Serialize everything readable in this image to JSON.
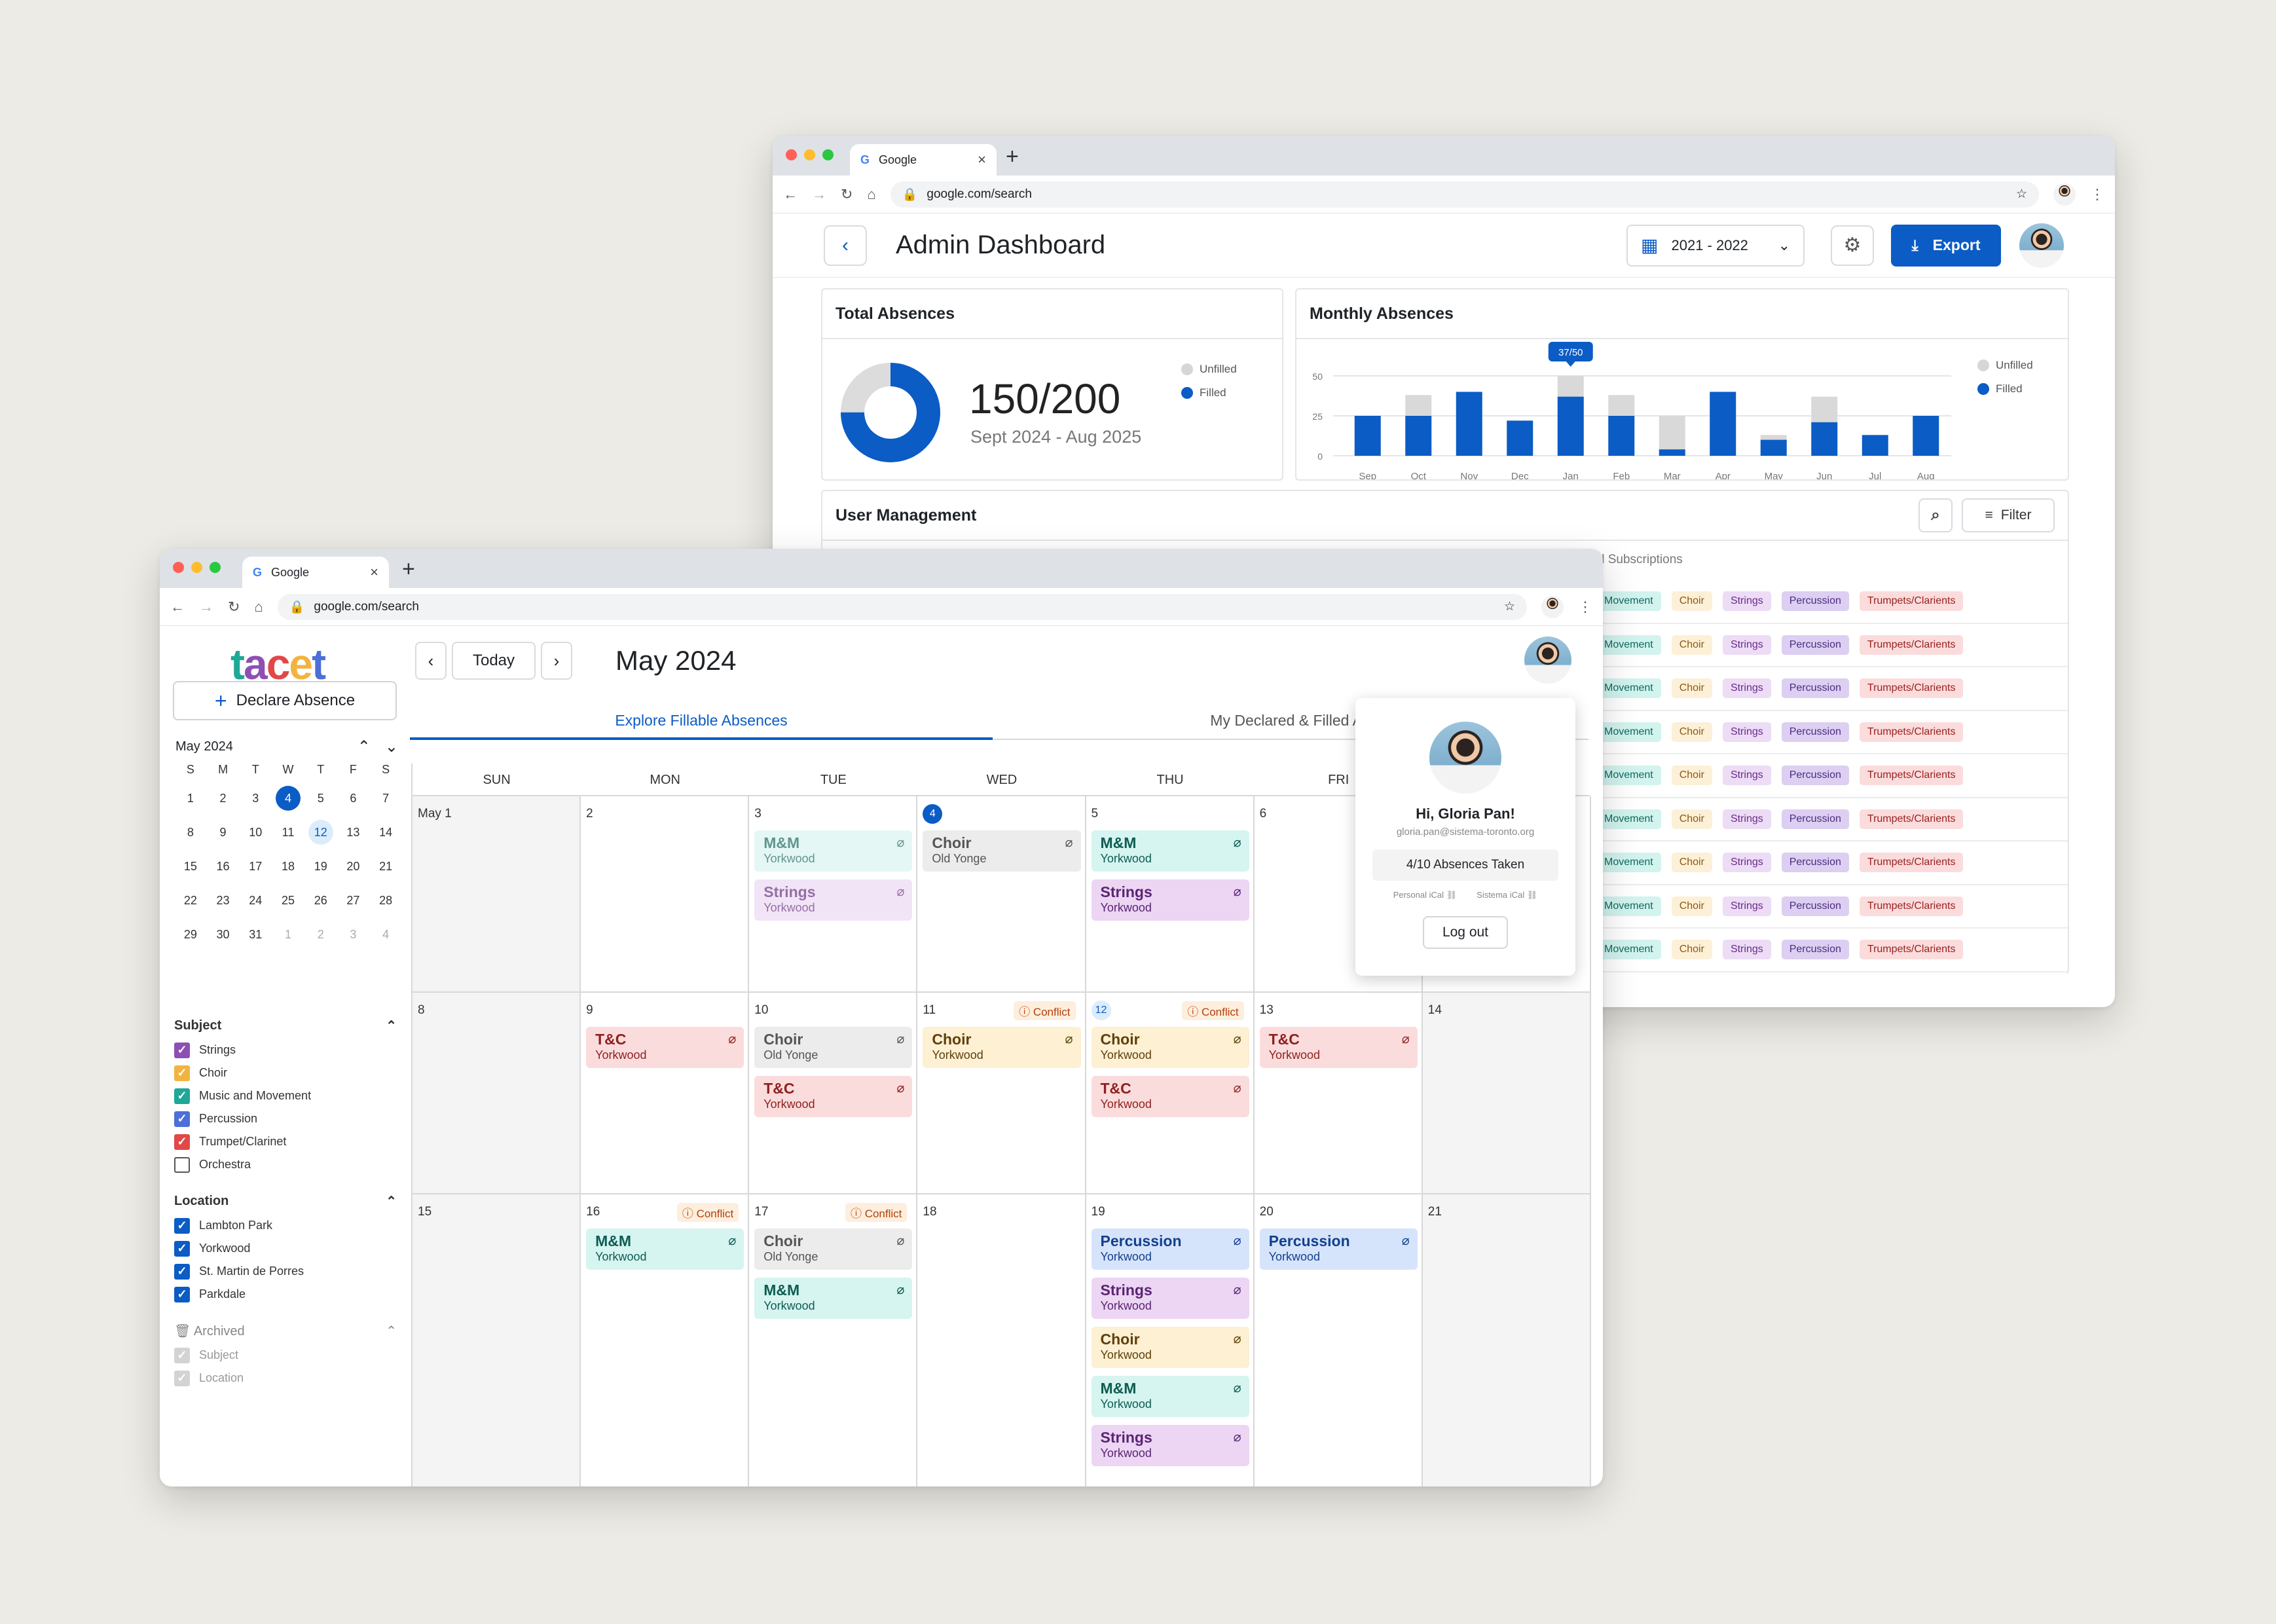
{
  "browser": {
    "tab_title": "Google",
    "url": "google.com/search"
  },
  "admin": {
    "title": "Admin Dashboard",
    "year": "2021 - 2022",
    "export_label": "Export",
    "total": {
      "title": "Total Absences",
      "value": "150/200",
      "range": "Sept 2024 - Aug 2025",
      "legend_unfilled": "Unfilled",
      "legend_filled": "Filled",
      "filled_fraction": 0.75
    },
    "monthly": {
      "title": "Monthly Absences",
      "tooltip": "37/50",
      "legend_unfilled": "Unfilled",
      "legend_filled": "Filled"
    },
    "users": {
      "title": "User Management",
      "filter_label": "Filter",
      "col_partial": "il Subscriptions",
      "tags": [
        "Movement",
        "Choir",
        "Strings",
        "Percussion",
        "Trumpets/Clarients"
      ]
    }
  },
  "chart_data": {
    "type": "bar",
    "title": "Monthly Absences",
    "categories": [
      "Sep",
      "Oct",
      "Nov",
      "Dec",
      "Jan",
      "Feb",
      "Mar",
      "Apr",
      "May",
      "Jun",
      "Jul",
      "Aug"
    ],
    "yticks": [
      0,
      25,
      50
    ],
    "ylim": [
      0,
      50
    ],
    "series": [
      {
        "name": "Filled",
        "values": [
          25,
          25,
          40,
          22,
          37,
          25,
          4,
          40,
          10,
          21,
          13,
          25
        ]
      },
      {
        "name": "Unfilled",
        "values": [
          0,
          13,
          0,
          0,
          13,
          13,
          21,
          0,
          3,
          16,
          0,
          0
        ]
      }
    ]
  },
  "calendar": {
    "logo": "tacet",
    "declare_label": "Declare Absence",
    "today_label": "Today",
    "month_title": "May 2024",
    "tab_explore": "Explore Fillable Absences",
    "tab_declared": "My Declared & Filled Ab",
    "mini": {
      "title": "May 2024",
      "dows": [
        "S",
        "M",
        "T",
        "W",
        "T",
        "F",
        "S"
      ],
      "days": [
        "1",
        "2",
        "3",
        "4",
        "5",
        "6",
        "7",
        "8",
        "9",
        "10",
        "11",
        "12",
        "13",
        "14",
        "15",
        "16",
        "17",
        "18",
        "19",
        "20",
        "21",
        "22",
        "23",
        "24",
        "25",
        "26",
        "27",
        "28",
        "29",
        "30",
        "31",
        "1",
        "2",
        "3",
        "4"
      ]
    },
    "subject": {
      "title": "Subject",
      "items": [
        {
          "label": "Strings",
          "color": "#8e4fb4",
          "checked": true
        },
        {
          "label": "Choir",
          "color": "#f2b441",
          "checked": true
        },
        {
          "label": "Music and Movement",
          "color": "#1fa797",
          "checked": true
        },
        {
          "label": "Percussion",
          "color": "#4c6fd8",
          "checked": true
        },
        {
          "label": "Trumpet/Clarinet",
          "color": "#e14848",
          "checked": true
        },
        {
          "label": "Orchestra",
          "color": "#ffffff",
          "checked": false
        }
      ]
    },
    "location": {
      "title": "Location",
      "items": [
        "Lambton Park",
        "Yorkwood",
        "St. Martin de Porres",
        "Parkdale"
      ]
    },
    "archived": {
      "title": "Archived",
      "items": [
        "Subject",
        "Location"
      ]
    },
    "days_header": [
      "SUN",
      "MON",
      "TUE",
      "WED",
      "THU",
      "FRI",
      "SAT"
    ],
    "weeks": [
      [
        {
          "d": "May 1",
          "gray": true,
          "ev": []
        },
        {
          "d": "2",
          "ev": []
        },
        {
          "d": "3",
          "ev": [
            {
              "t": "M&M",
              "l": "Yorkwood",
              "c": "mm",
              "dim": true
            },
            {
              "t": "Strings",
              "l": "Yorkwood",
              "c": "st",
              "dim": true
            }
          ]
        },
        {
          "d": "4",
          "today": true,
          "ev": [
            {
              "t": "Choir",
              "l": "Old Yonge",
              "c": "gr"
            }
          ]
        },
        {
          "d": "5",
          "ev": [
            {
              "t": "M&M",
              "l": "Yorkwood",
              "c": "mm"
            },
            {
              "t": "Strings",
              "l": "Yorkwood",
              "c": "st"
            }
          ]
        },
        {
          "d": "6",
          "ev": []
        },
        {
          "d": "",
          "ev": []
        }
      ],
      [
        {
          "d": "8",
          "gray": true,
          "ev": []
        },
        {
          "d": "9",
          "ev": [
            {
              "t": "T&C",
              "l": "Yorkwood",
              "c": "tc"
            }
          ]
        },
        {
          "d": "10",
          "ev": [
            {
              "t": "Choir",
              "l": "Old Yonge",
              "c": "gr"
            },
            {
              "t": "T&C",
              "l": "Yorkwood",
              "c": "tc"
            }
          ]
        },
        {
          "d": "11",
          "conflict": "Conflict",
          "ev": [
            {
              "t": "Choir",
              "l": "Yorkwood",
              "c": "ch"
            }
          ]
        },
        {
          "d": "12",
          "sel": true,
          "conflict": "Conflict",
          "ev": [
            {
              "t": "Choir",
              "l": "Yorkwood",
              "c": "ch"
            },
            {
              "t": "T&C",
              "l": "Yorkwood",
              "c": "tc"
            }
          ]
        },
        {
          "d": "13",
          "ev": [
            {
              "t": "T&C",
              "l": "Yorkwood",
              "c": "tc"
            }
          ]
        },
        {
          "d": "14",
          "gray": true,
          "ev": []
        }
      ],
      [
        {
          "d": "15",
          "gray": true,
          "ev": []
        },
        {
          "d": "16",
          "conflict": "Conflict",
          "ev": [
            {
              "t": "M&M",
              "l": "Yorkwood",
              "c": "mm"
            }
          ]
        },
        {
          "d": "17",
          "conflict": "Conflict",
          "ev": [
            {
              "t": "Choir",
              "l": "Old Yonge",
              "c": "gr"
            },
            {
              "t": "M&M",
              "l": "Yorkwood",
              "c": "mm"
            }
          ]
        },
        {
          "d": "18",
          "ev": []
        },
        {
          "d": "19",
          "ev": [
            {
              "t": "Percussion",
              "l": "Yorkwood",
              "c": "pe"
            },
            {
              "t": "Strings",
              "l": "Yorkwood",
              "c": "st"
            },
            {
              "t": "Choir",
              "l": "Yorkwood",
              "c": "ch"
            },
            {
              "t": "M&M",
              "l": "Yorkwood",
              "c": "mm"
            },
            {
              "t": "Strings",
              "l": "Yorkwood",
              "c": "st"
            }
          ]
        },
        {
          "d": "20",
          "ev": [
            {
              "t": "Percussion",
              "l": "Yorkwood",
              "c": "pe"
            }
          ]
        },
        {
          "d": "21",
          "gray": true,
          "ev": []
        }
      ]
    ],
    "profile": {
      "greeting": "Hi, Gloria Pan!",
      "email": "gloria.pan@sistema-toronto.org",
      "absences": "4/10",
      "absences_label": "Absences Taken",
      "personal_ical": "Personal iCal",
      "sistema_ical": "Sistema iCal",
      "logout": "Log out"
    }
  }
}
